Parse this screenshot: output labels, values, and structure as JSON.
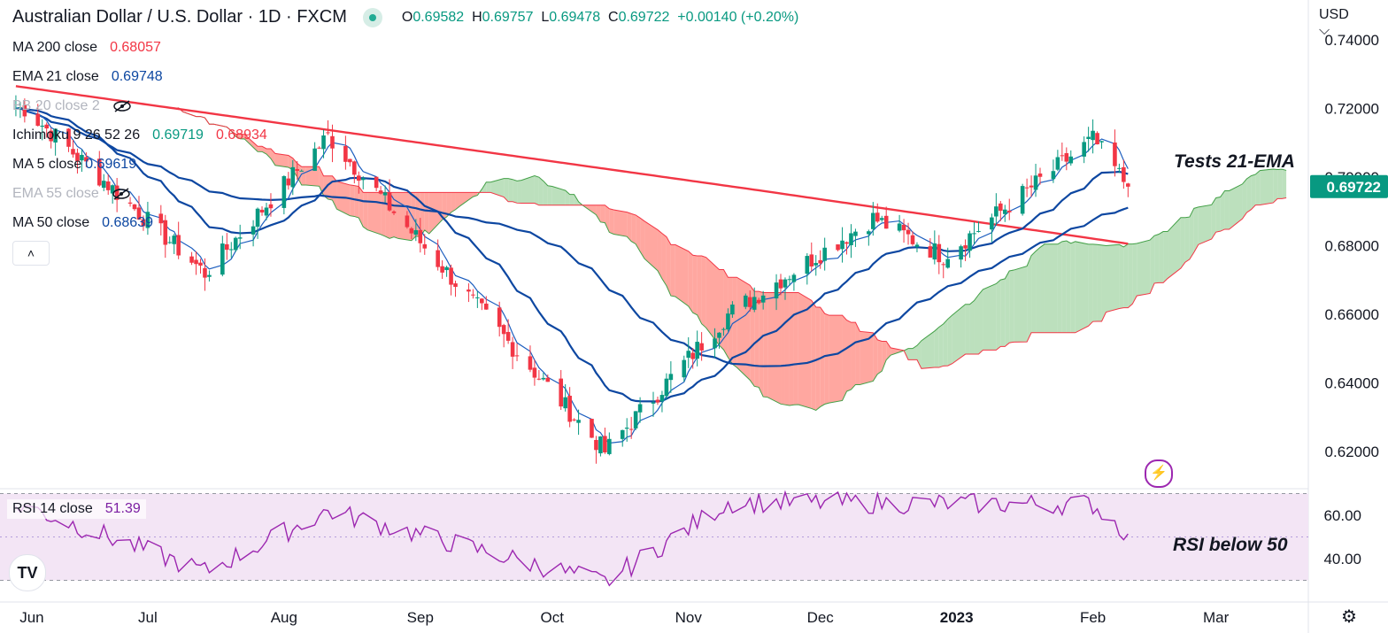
{
  "header": {
    "title": "Australian Dollar / U.S. Dollar · 1D · FXCM",
    "ohlc": {
      "o_label": "O",
      "o": "0.69582",
      "h_label": "H",
      "h": "0.69757",
      "l_label": "L",
      "l": "0.69478",
      "c_label": "C",
      "c": "0.69722",
      "change": "+0.00140 (+0.20%)"
    }
  },
  "indicators": [
    {
      "label": "MA 200 close",
      "value": "0.68057",
      "color": "#f23645"
    },
    {
      "label": "EMA 21 close",
      "value": "0.69748",
      "color": "#0d47a1"
    },
    {
      "label": "BB 20 close 2",
      "value": "",
      "color": "#b2b5be",
      "hidden": true
    },
    {
      "label": "Ichimoku 9 26 52 26",
      "value": "0.69719",
      "value2": "0.68934",
      "color": "#089981",
      "color2": "#f23645"
    },
    {
      "label": "MA 5 close",
      "value": "0.69619",
      "color": "#0d47a1"
    },
    {
      "label": "EMA 55 close",
      "value": "",
      "color": "#b2b5be",
      "hidden": true
    },
    {
      "label": "MA 50 close",
      "value": "0.68639",
      "color": "#0d47a1"
    }
  ],
  "collapse_icon": "chevron-up-icon",
  "currency": "USD",
  "last_price": "0.69722",
  "price_axis": [
    "0.74000",
    "0.72000",
    "0.70000",
    "0.68000",
    "0.66000",
    "0.64000",
    "0.62000"
  ],
  "rsi": {
    "label": "RSI 14 close",
    "value": "51.39",
    "axis": [
      "60.00",
      "40.00"
    ]
  },
  "time_axis": [
    "Jun",
    "Jul",
    "Aug",
    "Sep",
    "Oct",
    "Nov",
    "Dec",
    "2023",
    "Feb",
    "Mar"
  ],
  "annotations": {
    "ema": "Tests 21-EMA",
    "rsi": "RSI below 50"
  },
  "colors": {
    "up": "#089981",
    "down": "#f23645",
    "rsi_line": "#9c27b0",
    "rsi_bg": "#f3e5f5",
    "kumo_up": "#a5d6a7",
    "kumo_down": "#ff8a80"
  },
  "icons": {
    "logo": "tradingview-logo-icon",
    "bolt": "lightning-icon",
    "settings": "gear-icon",
    "dot": "market-status-dot-icon"
  },
  "chart_data": {
    "type": "candlestick",
    "symbol": "AUDUSD",
    "interval": "1D",
    "ylim": [
      0.612,
      0.744
    ],
    "rsi_ylim": [
      25,
      75
    ],
    "key_points": [
      {
        "date": "2022-06-03",
        "close": 0.72
      },
      {
        "date": "2022-07-14",
        "close": 0.672
      },
      {
        "date": "2022-08-11",
        "close": 0.712
      },
      {
        "date": "2022-09-01",
        "close": 0.681
      },
      {
        "date": "2022-10-13",
        "close": 0.62
      },
      {
        "date": "2022-11-10",
        "close": 0.66
      },
      {
        "date": "2022-12-13",
        "close": 0.688
      },
      {
        "date": "2022-12-29",
        "close": 0.677
      },
      {
        "date": "2023-02-01",
        "close": 0.711
      },
      {
        "date": "2023-02-09",
        "close": 0.6972
      }
    ],
    "rsi_points": [
      {
        "date": "2022-06-03",
        "value": 64
      },
      {
        "date": "2022-07-14",
        "value": 34
      },
      {
        "date": "2022-08-11",
        "value": 62
      },
      {
        "date": "2022-10-13",
        "value": 29
      },
      {
        "date": "2022-11-10",
        "value": 66
      },
      {
        "date": "2023-02-01",
        "value": 65
      },
      {
        "date": "2023-02-09",
        "value": 51.39
      }
    ],
    "series_levels": {
      "ma200": 0.68057,
      "ema21": 0.69748,
      "ma5": 0.69619,
      "ma50": 0.68639,
      "ichimoku_a": 0.69719,
      "ichimoku_b": 0.68934
    }
  }
}
